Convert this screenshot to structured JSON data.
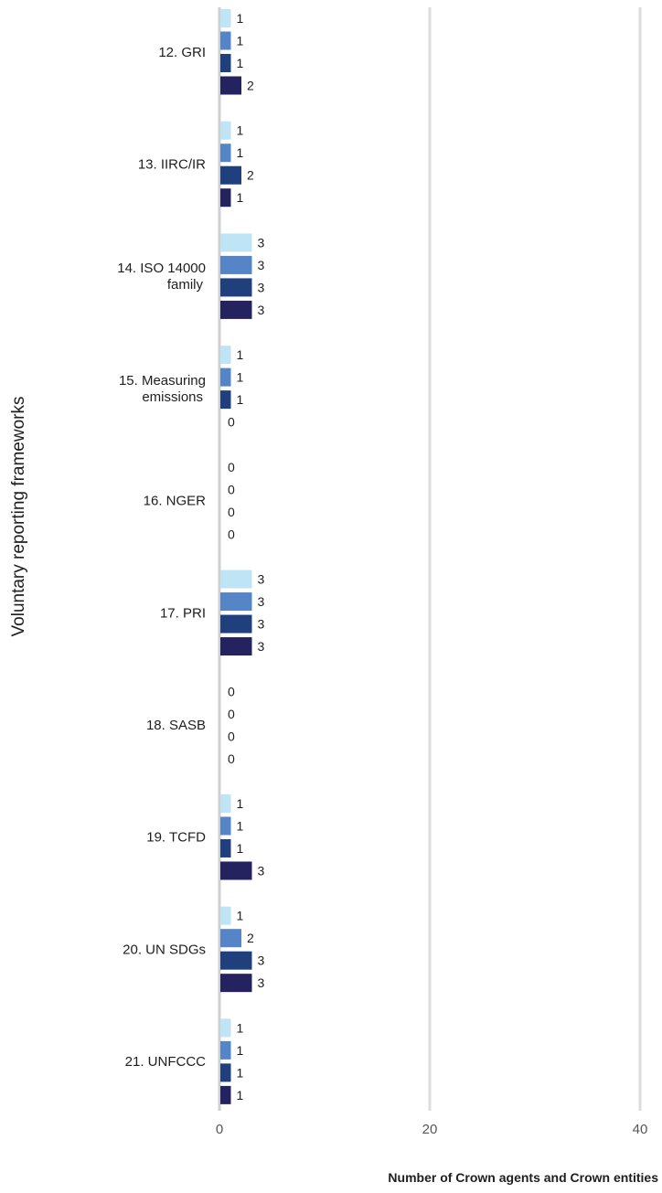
{
  "chart_data": {
    "type": "bar",
    "orientation": "horizontal",
    "categories": [
      "12. GRI",
      "13. IIRC/IR",
      "14. ISO 14000 family",
      "15. Measuring emissions",
      "16. NGER",
      "17. PRI",
      "18. SASB",
      "19. TCFD",
      "20. UN SDGs",
      "21. UNFCCC"
    ],
    "category_label_lines": [
      [
        "12. GRI"
      ],
      [
        "13. IIRC/IR"
      ],
      [
        "14. ISO 14000",
        "family"
      ],
      [
        "15. Measuring",
        "emissions"
      ],
      [
        "16. NGER"
      ],
      [
        "17. PRI"
      ],
      [
        "18. SASB"
      ],
      [
        "19. TCFD"
      ],
      [
        "20. UN SDGs"
      ],
      [
        "21. UNFCCC"
      ]
    ],
    "series": [
      {
        "color": "#bfe4f5",
        "values": [
          1,
          1,
          3,
          1,
          0,
          3,
          0,
          1,
          1,
          1
        ]
      },
      {
        "color": "#5585c7",
        "values": [
          1,
          1,
          3,
          1,
          0,
          3,
          0,
          1,
          2,
          1
        ]
      },
      {
        "color": "#1f3f7d",
        "values": [
          1,
          2,
          3,
          1,
          0,
          3,
          0,
          1,
          3,
          1
        ]
      },
      {
        "color": "#25235f",
        "values": [
          2,
          1,
          3,
          0,
          0,
          3,
          0,
          3,
          3,
          1
        ]
      }
    ],
    "xlim": [
      0,
      40
    ],
    "xticks": [
      0,
      20,
      40
    ],
    "xlabel": "Number of Crown agents and Crown entities",
    "ylabel": "Voluntary reporting frameworks",
    "grid": true,
    "legend": "none"
  }
}
